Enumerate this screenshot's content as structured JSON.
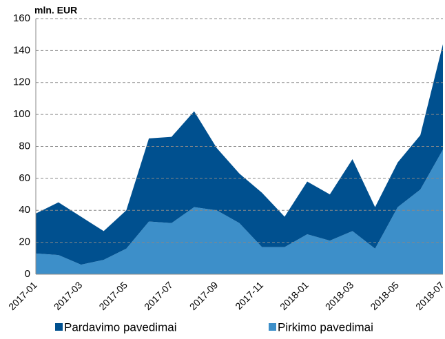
{
  "chart_data": {
    "type": "stacked_area",
    "y_label": "mln. EUR",
    "categories": [
      "2017-01",
      null,
      "2017-03",
      null,
      "2017-05",
      null,
      "2017-07",
      null,
      "2017-09",
      null,
      "2017-11",
      null,
      "2018-01",
      null,
      "2018-03",
      null,
      "2018-05",
      null,
      "2018-07"
    ],
    "series": [
      {
        "name": "Pardavimo pavedimai",
        "color": "#00508f",
        "values": [
          25,
          33,
          30,
          18,
          24,
          52,
          54,
          60,
          39,
          31,
          34,
          19,
          33,
          29,
          45,
          26,
          28,
          34,
          66
        ]
      },
      {
        "name": "Pirkimo pavedimai",
        "color": "#3d8fc9",
        "values": [
          13,
          12,
          6,
          9,
          16,
          33,
          32,
          42,
          40,
          32,
          17,
          17,
          25,
          21,
          27,
          16,
          42,
          53,
          78
        ]
      }
    ],
    "ylim": [
      0,
      160
    ],
    "yticks": [
      0,
      20,
      40,
      60,
      80,
      100,
      120,
      140,
      160
    ],
    "grid": true,
    "legend": "bottom"
  }
}
